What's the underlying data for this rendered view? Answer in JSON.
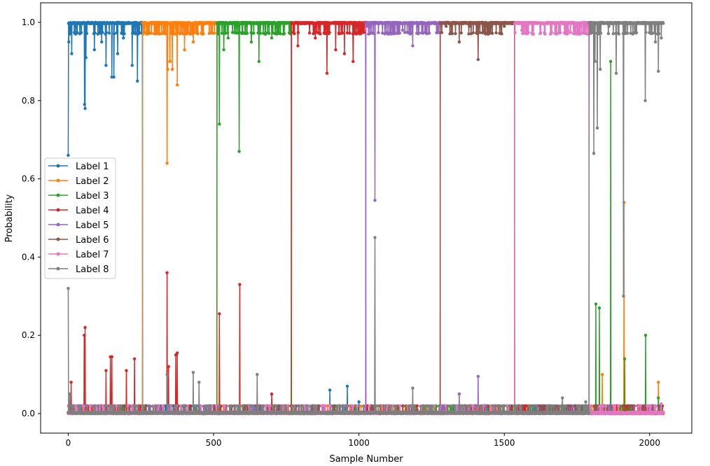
{
  "chart_data": {
    "type": "line",
    "title": "",
    "xlabel": "Sample Number",
    "ylabel": "Probability",
    "xlim": [
      -95,
      2145
    ],
    "ylim": [
      -0.05,
      1.05
    ],
    "xticks": [
      0,
      500,
      1000,
      1500,
      2000
    ],
    "xtick_labels": [
      "0",
      "500",
      "1000",
      "1500",
      "2000"
    ],
    "yticks": [
      0.0,
      0.2,
      0.4,
      0.6,
      0.8,
      1.0
    ],
    "ytick_labels": [
      "0.0",
      "0.2",
      "0.4",
      "0.6",
      "0.8",
      "1.0"
    ],
    "grid": false,
    "legend_position": "center-left",
    "n_samples": 2048,
    "series": [
      {
        "name": "Label 1",
        "color": "#1f77b4",
        "high_segment": [
          0,
          255
        ],
        "low_points": [
          [
            900,
            0.06
          ],
          [
            960,
            0.07
          ],
          [
            1000,
            0.03
          ],
          [
            1200,
            0.005
          ],
          [
            1550,
            0.003
          ]
        ],
        "high_dips": [
          [
            0,
            0.66
          ],
          [
            2,
            0.95
          ],
          [
            12,
            0.92
          ],
          [
            25,
            0.97
          ],
          [
            56,
            0.79
          ],
          [
            58,
            0.78
          ],
          [
            61,
            0.91
          ],
          [
            90,
            0.93
          ],
          [
            115,
            0.95
          ],
          [
            130,
            0.89
          ],
          [
            150,
            0.86
          ],
          [
            157,
            0.86
          ],
          [
            170,
            0.92
          ],
          [
            190,
            0.96
          ],
          [
            220,
            0.89
          ],
          [
            238,
            0.85
          ]
        ]
      },
      {
        "name": "Label 2",
        "color": "#ff7f0e",
        "high_segment": [
          256,
          511
        ],
        "low_points": [
          [
            1880,
            0.005
          ],
          [
            2000,
            0.02
          ],
          [
            2030,
            0.08
          ],
          [
            1912,
            0.54
          ],
          [
            1837,
            0.1
          ]
        ],
        "high_dips": [
          [
            270,
            0.97
          ],
          [
            300,
            0.98
          ],
          [
            340,
            0.64
          ],
          [
            342,
            0.88
          ],
          [
            350,
            0.9
          ],
          [
            358,
            0.88
          ],
          [
            375,
            0.84
          ],
          [
            400,
            0.93
          ],
          [
            430,
            0.95
          ],
          [
            460,
            0.97
          ]
        ]
      },
      {
        "name": "Label 3",
        "color": "#2ca02c",
        "high_segment": [
          512,
          767
        ],
        "low_points": [
          [
            1815,
            0.28
          ],
          [
            1827,
            0.27
          ],
          [
            1866,
            0.9
          ],
          [
            1914,
            0.14
          ],
          [
            1986,
            0.2
          ],
          [
            2030,
            0.04
          ]
        ],
        "high_dips": [
          [
            520,
            0.74
          ],
          [
            535,
            0.93
          ],
          [
            550,
            0.96
          ],
          [
            588,
            0.67
          ],
          [
            630,
            0.95
          ],
          [
            656,
            0.9
          ],
          [
            700,
            0.96
          ],
          [
            740,
            0.97
          ]
        ]
      },
      {
        "name": "Label 4",
        "color": "#d62728",
        "high_segment": [
          768,
          1023
        ],
        "low_points": [
          [
            10,
            0.08
          ],
          [
            55,
            0.2
          ],
          [
            58,
            0.22
          ],
          [
            130,
            0.11
          ],
          [
            145,
            0.145
          ],
          [
            150,
            0.145
          ],
          [
            200,
            0.11
          ],
          [
            228,
            0.14
          ],
          [
            340,
            0.36
          ],
          [
            345,
            0.12
          ],
          [
            370,
            0.15
          ],
          [
            375,
            0.155
          ],
          [
            520,
            0.255
          ],
          [
            590,
            0.33
          ],
          [
            700,
            0.05
          ]
        ],
        "high_dips": [
          [
            790,
            0.94
          ],
          [
            850,
            0.96
          ],
          [
            890,
            0.87
          ],
          [
            920,
            0.93
          ],
          [
            950,
            0.92
          ],
          [
            980,
            0.9
          ],
          [
            1010,
            0.98
          ]
        ]
      },
      {
        "name": "Label 5",
        "color": "#9467bd",
        "high_segment": [
          1024,
          1279
        ],
        "low_points": [
          [
            1345,
            0.05
          ],
          [
            1400,
            0.02
          ],
          [
            1410,
            0.095
          ],
          [
            1435,
            0.02
          ]
        ],
        "high_dips": [
          [
            1030,
            0.99
          ],
          [
            1055,
            0.545
          ],
          [
            1100,
            0.97
          ],
          [
            1150,
            0.98
          ],
          [
            1185,
            0.94
          ],
          [
            1230,
            0.98
          ]
        ]
      },
      {
        "name": "Label 6",
        "color": "#8c564b",
        "high_segment": [
          1280,
          1535
        ],
        "low_points": [
          [
            1100,
            0.02
          ],
          [
            1200,
            0.01
          ],
          [
            1450,
            0.005
          ]
        ],
        "high_dips": [
          [
            1300,
            0.99
          ],
          [
            1345,
            0.95
          ],
          [
            1380,
            0.99
          ],
          [
            1410,
            0.905
          ],
          [
            1430,
            0.98
          ],
          [
            1500,
            0.99
          ]
        ]
      },
      {
        "name": "Label 7",
        "color": "#e377c2",
        "high_segment": [
          1536,
          1791
        ],
        "low_points": [
          [
            2040,
            0.025
          ],
          [
            1900,
            0.004
          ]
        ],
        "high_dips": [
          [
            1560,
            0.98
          ],
          [
            1600,
            0.97
          ],
          [
            1640,
            0.97
          ],
          [
            1680,
            0.97
          ],
          [
            1720,
            0.98
          ],
          [
            1760,
            0.97
          ]
        ]
      },
      {
        "name": "Label 8",
        "color": "#7f7f7f",
        "high_segment": [
          1792,
          2047
        ],
        "low_points": [
          [
            0,
            0.32
          ],
          [
            5,
            0.05
          ],
          [
            340,
            0.1
          ],
          [
            430,
            0.105
          ],
          [
            450,
            0.08
          ],
          [
            650,
            0.1
          ],
          [
            1055,
            0.45
          ],
          [
            1185,
            0.065
          ],
          [
            1700,
            0.04
          ],
          [
            1780,
            0.03
          ]
        ],
        "high_dips": [
          [
            1808,
            0.665
          ],
          [
            1812,
            0.9
          ],
          [
            1820,
            0.73
          ],
          [
            1830,
            0.88
          ],
          [
            1860,
            0.99
          ],
          [
            1885,
            0.87
          ],
          [
            1910,
            0.3
          ],
          [
            1985,
            0.8
          ],
          [
            2020,
            0.95
          ],
          [
            2030,
            0.875
          ],
          [
            2040,
            0.96
          ]
        ]
      }
    ]
  }
}
